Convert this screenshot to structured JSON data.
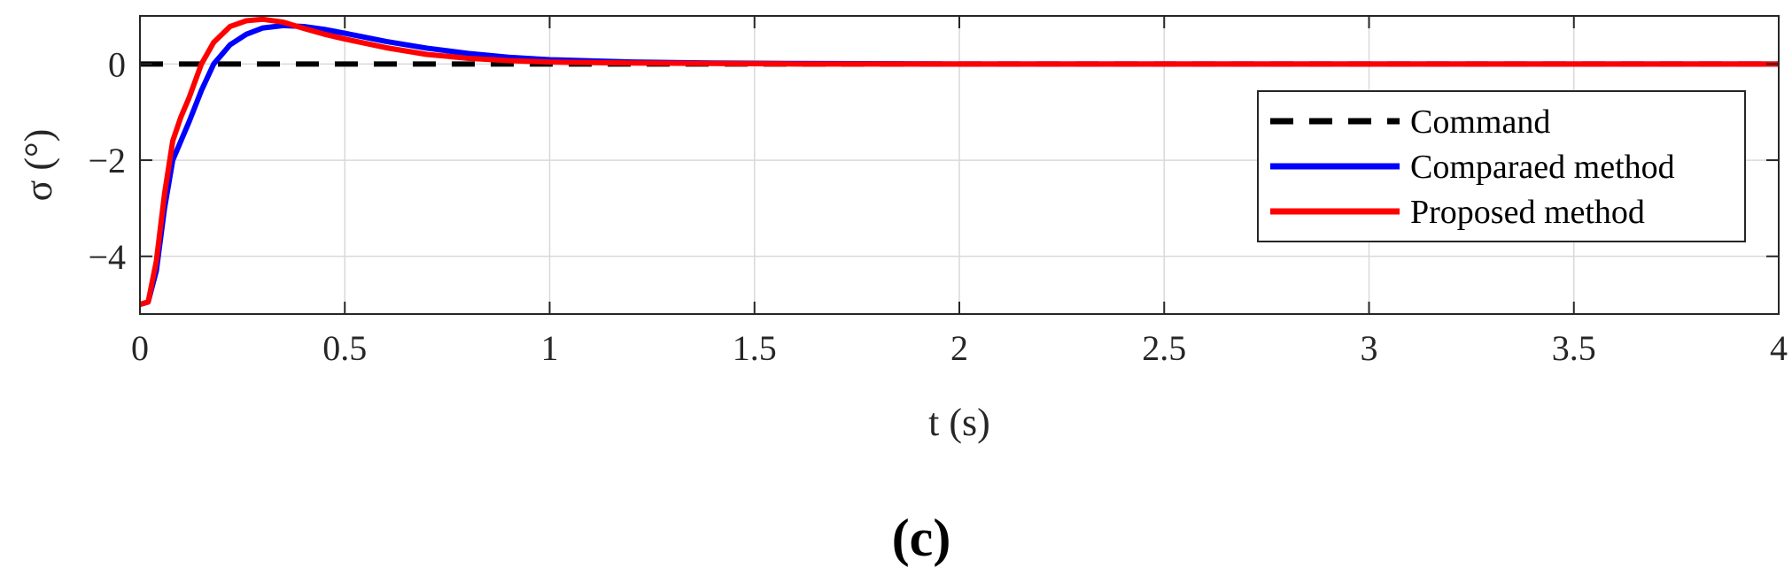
{
  "chart_data": {
    "type": "line",
    "title": "",
    "xlabel": "t (s)",
    "ylabel": "σ (°)",
    "xlim": [
      0,
      4
    ],
    "ylim": [
      -5.2,
      1.0
    ],
    "xticks": [
      0,
      0.5,
      1,
      1.5,
      2,
      2.5,
      3,
      3.5,
      4
    ],
    "xtick_labels": [
      "0",
      "0.5",
      "1",
      "1.5",
      "2",
      "2.5",
      "3",
      "3.5",
      "4"
    ],
    "yticks": [
      -4,
      -2,
      0
    ],
    "ytick_labels": [
      "−4",
      "−2",
      "0"
    ],
    "grid": true,
    "legend_position": "right",
    "series": [
      {
        "name": "Command",
        "color": "#000000",
        "style": "dashed",
        "x": [
          0,
          4
        ],
        "y": [
          0,
          0
        ]
      },
      {
        "name": "Comparaed method",
        "color": "#0000FF",
        "style": "solid",
        "x": [
          0,
          0.02,
          0.04,
          0.06,
          0.08,
          0.1,
          0.12,
          0.15,
          0.18,
          0.22,
          0.26,
          0.3,
          0.35,
          0.4,
          0.45,
          0.5,
          0.6,
          0.7,
          0.8,
          0.9,
          1.0,
          1.2,
          1.4,
          1.6,
          2.0,
          2.5,
          3.0,
          3.5,
          4.0
        ],
        "y": [
          -5.0,
          -4.95,
          -4.3,
          -3.0,
          -2.0,
          -1.6,
          -1.2,
          -0.55,
          0.0,
          0.4,
          0.62,
          0.75,
          0.8,
          0.78,
          0.72,
          0.64,
          0.47,
          0.33,
          0.22,
          0.14,
          0.09,
          0.04,
          0.02,
          0.01,
          0.0,
          0.0,
          0.0,
          0.0,
          0.0
        ]
      },
      {
        "name": "Proposed method",
        "color": "#FF0000",
        "style": "solid",
        "x": [
          0,
          0.02,
          0.04,
          0.06,
          0.08,
          0.1,
          0.12,
          0.15,
          0.18,
          0.22,
          0.26,
          0.3,
          0.35,
          0.4,
          0.45,
          0.5,
          0.6,
          0.7,
          0.8,
          0.9,
          1.0,
          1.2,
          1.4,
          1.6,
          2.0,
          2.5,
          3.0,
          3.5,
          4.0
        ],
        "y": [
          -5.0,
          -4.95,
          -4.1,
          -2.7,
          -1.6,
          -1.1,
          -0.7,
          0.0,
          0.45,
          0.78,
          0.9,
          0.93,
          0.87,
          0.74,
          0.62,
          0.52,
          0.34,
          0.2,
          0.12,
          0.07,
          0.04,
          0.02,
          0.01,
          0.0,
          0.0,
          0.0,
          0.0,
          0.0,
          0.0
        ]
      }
    ]
  },
  "panel_label": "(c)"
}
